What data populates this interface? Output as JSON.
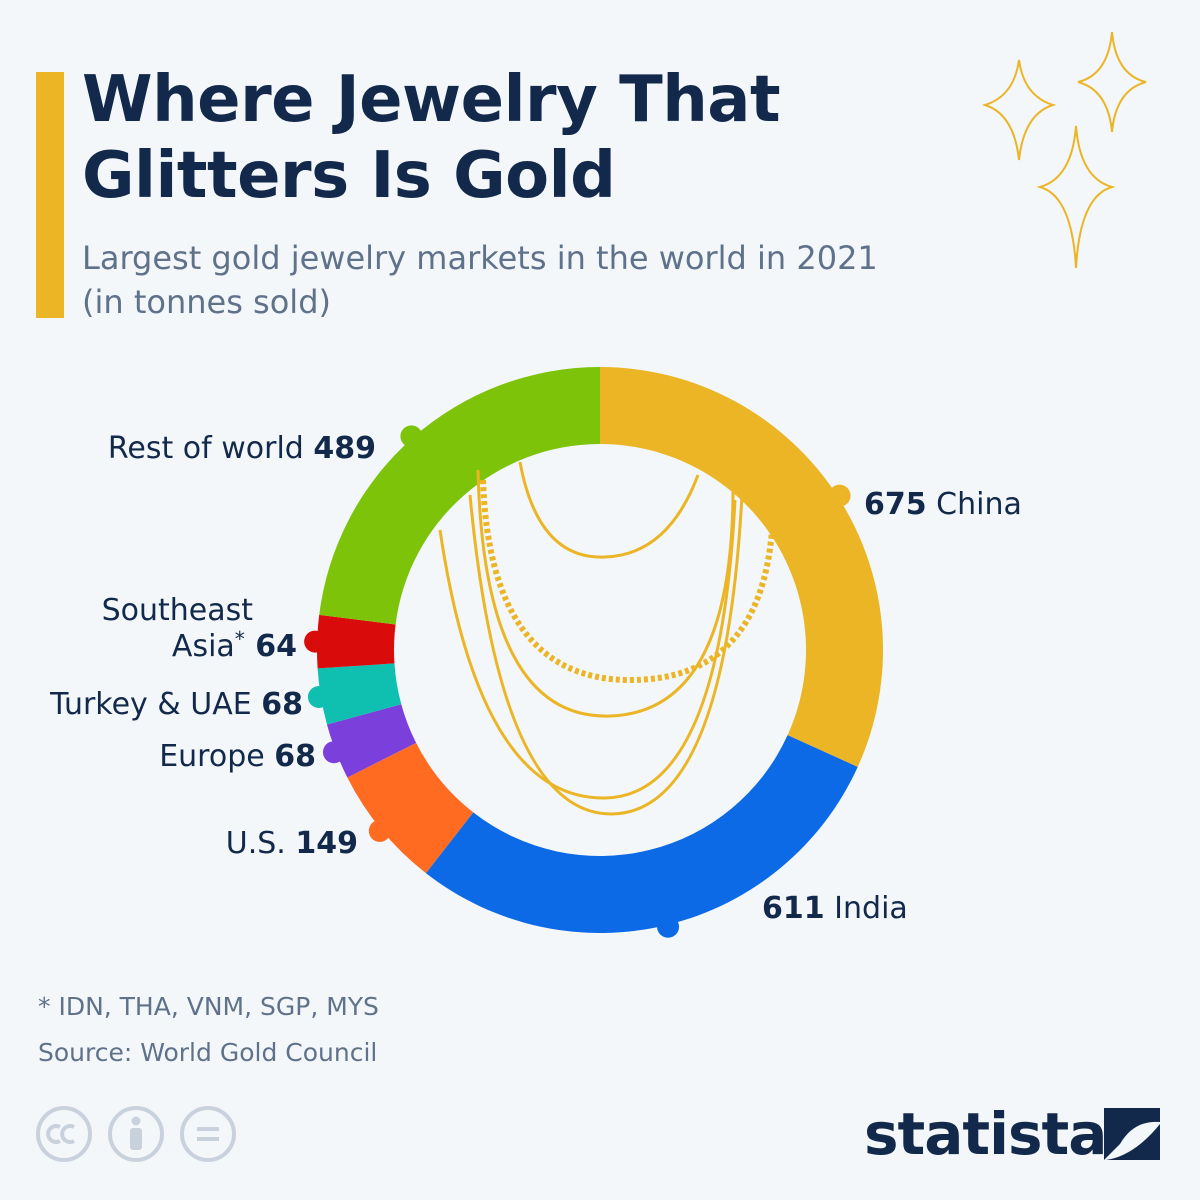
{
  "header": {
    "title_line1": "Where Jewelry That",
    "title_line2": "Glitters Is Gold",
    "subtitle_line1": "Largest gold jewelry markets in the world in 2021",
    "subtitle_line2": "(in tonnes sold)"
  },
  "chart_data": {
    "type": "pie",
    "variant": "donut",
    "title": "Where Jewelry That Glitters Is Gold",
    "subtitle": "Largest gold jewelry markets in the world in 2021 (in tonnes sold)",
    "unit": "tonnes",
    "slices": [
      {
        "name": "China",
        "value": 675,
        "color": "#ebb526",
        "label_side": "right"
      },
      {
        "name": "India",
        "value": 611,
        "color": "#0d6ae6",
        "label_side": "right"
      },
      {
        "name": "U.S.",
        "value": 149,
        "color": "#ff6b21",
        "label_side": "left"
      },
      {
        "name": "Europe",
        "value": 68,
        "color": "#7b3fdc",
        "label_side": "left"
      },
      {
        "name": "Turkey & UAE",
        "value": 68,
        "color": "#0fbfb0",
        "label_side": "left"
      },
      {
        "name": "Southeast Asia",
        "name_suffix": "*",
        "value": 64,
        "color": "#d90b0b",
        "label_side": "left"
      },
      {
        "name": "Rest of world",
        "value": 489,
        "color": "#7dc30a",
        "label_side": "left"
      }
    ]
  },
  "notes": {
    "footnote": "* IDN, THA, VNM, SGP, MYS",
    "source": "Source: World Gold Council"
  },
  "brand": {
    "name": "statista",
    "license_icons": [
      "cc-icon",
      "attribution-icon",
      "no-derivatives-icon"
    ]
  },
  "colors": {
    "accent": "#ebb526",
    "text_dark": "#13294b",
    "text_muted": "#5f728a",
    "background": "#f3f7fa"
  }
}
